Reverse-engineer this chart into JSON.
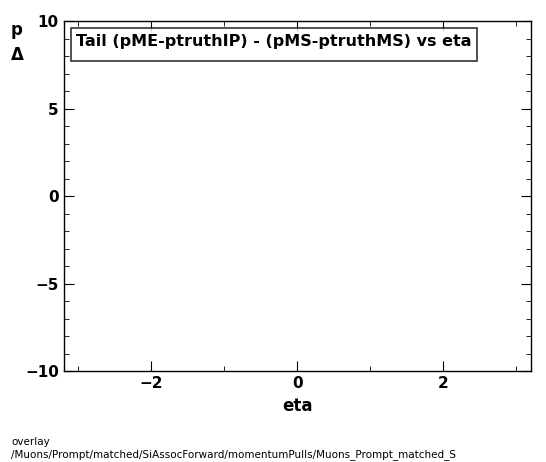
{
  "title": "Tail (pME-ptruthIP) - (pMS-ptruthMS) vs eta",
  "xlabel": "eta",
  "ylabel_line1": "p",
  "ylabel_line2": "Δ",
  "xlim": [
    -3.2,
    3.2
  ],
  "ylim": [
    -10,
    10
  ],
  "xticks": [
    -2,
    0,
    2
  ],
  "yticks": [
    -10,
    -5,
    0,
    5,
    10
  ],
  "x_minor_ticks": 1.0,
  "y_minor_ticks": 1.0,
  "background_color": "#ffffff",
  "plot_background": "#ffffff",
  "title_fontsize": 11.5,
  "axis_label_fontsize": 12,
  "tick_fontsize": 11,
  "footer_text": "overlay\n/Muons/Prompt/matched/SiAssocForward/momentumPulls/Muons_Prompt_matched_S",
  "footer_fontsize": 7.5
}
